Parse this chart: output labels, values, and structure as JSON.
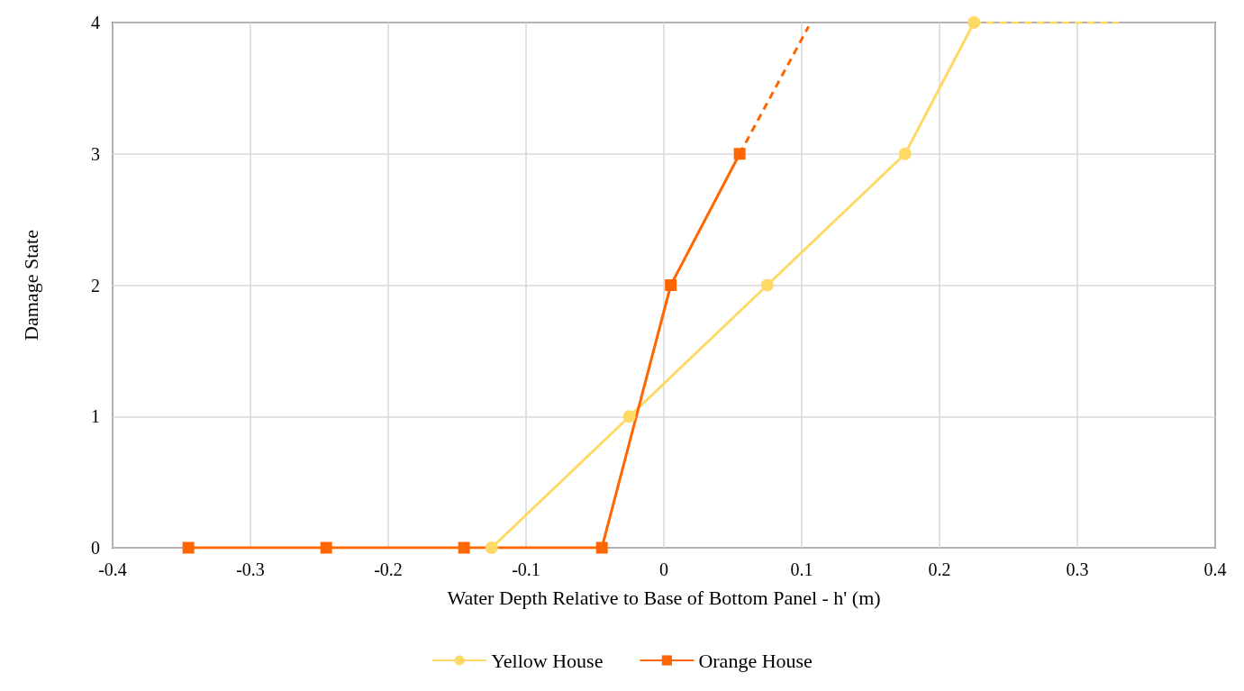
{
  "chart_data": {
    "type": "line",
    "xlabel": "Water Depth Relative to Base of Bottom Panel - h' (m)",
    "ylabel": "Damage State",
    "xlim": [
      -0.4,
      0.4
    ],
    "xticks": [
      -0.4,
      -0.3,
      -0.2,
      -0.1,
      0,
      0.1,
      0.2,
      0.3,
      0.4
    ],
    "ylim": [
      0,
      4
    ],
    "yticks": [
      0,
      1,
      2,
      3,
      4
    ],
    "grid": true,
    "legend": "bottom",
    "line_style": "solid",
    "series": [
      {
        "name": "Yellow House",
        "color": "#ffd966",
        "marker": "circle",
        "x": [
          -0.125,
          -0.025,
          0.075,
          0.175,
          0.225
        ],
        "values": [
          0,
          1,
          2,
          3,
          4
        ]
      },
      {
        "name": "Orange House",
        "color": "#ff6600",
        "marker": "square",
        "x": [
          -0.345,
          -0.245,
          -0.145,
          -0.045,
          0.005,
          0.055
        ],
        "values": [
          0,
          0,
          0,
          0,
          2,
          3
        ]
      },
      {
        "color": "#ffd966",
        "marker": "none",
        "line_style": "dashed",
        "x": [
          0.225,
          0.33
        ],
        "values": [
          4,
          4
        ]
      },
      {
        "color": "#ff6600",
        "marker": "none",
        "line_style": "dashed",
        "x": [
          0.055,
          0.105
        ],
        "values": [
          3,
          3.97
        ]
      }
    ]
  }
}
